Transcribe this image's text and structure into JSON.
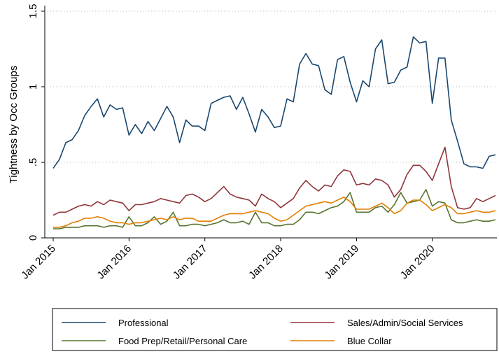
{
  "chart_data": {
    "type": "line",
    "y_label": "Tightness by Occ Groups",
    "x": [
      "2015-01",
      "2015-02",
      "2015-03",
      "2015-04",
      "2015-05",
      "2015-06",
      "2015-07",
      "2015-08",
      "2015-09",
      "2015-10",
      "2015-11",
      "2015-12",
      "2016-01",
      "2016-02",
      "2016-03",
      "2016-04",
      "2016-05",
      "2016-06",
      "2016-07",
      "2016-08",
      "2016-09",
      "2016-10",
      "2016-11",
      "2016-12",
      "2017-01",
      "2017-02",
      "2017-03",
      "2017-04",
      "2017-05",
      "2017-06",
      "2017-07",
      "2017-08",
      "2017-09",
      "2017-10",
      "2017-11",
      "2017-12",
      "2018-01",
      "2018-02",
      "2018-03",
      "2018-04",
      "2018-05",
      "2018-06",
      "2018-07",
      "2018-08",
      "2018-09",
      "2018-10",
      "2018-11",
      "2018-12",
      "2019-01",
      "2019-02",
      "2019-03",
      "2019-04",
      "2019-05",
      "2019-06",
      "2019-07",
      "2019-08",
      "2019-09",
      "2019-10",
      "2019-11",
      "2019-12",
      "2020-01",
      "2020-02",
      "2020-03",
      "2020-04",
      "2020-05",
      "2020-06",
      "2020-07",
      "2020-08",
      "2020-09",
      "2020-10",
      "2020-11"
    ],
    "xlim": [
      "2015-01",
      "2020-11"
    ],
    "xticks": [
      {
        "value": "2015-01",
        "label": "Jan 2015"
      },
      {
        "value": "2016-01",
        "label": "Jan 2016"
      },
      {
        "value": "2017-01",
        "label": "Jan 2017"
      },
      {
        "value": "2018-01",
        "label": "Jan 2018"
      },
      {
        "value": "2019-01",
        "label": "Jan 2019"
      },
      {
        "value": "2020-01",
        "label": "Jan 2020"
      }
    ],
    "ylim": [
      0,
      1.5
    ],
    "yticks": [
      0,
      {
        "value": 0.5,
        "label": ".5"
      },
      1,
      1.5
    ],
    "grid": true,
    "legend_position": "bottom",
    "series": [
      {
        "name": "Professional",
        "color": "#1a476f",
        "values": [
          0.46,
          0.52,
          0.63,
          0.65,
          0.71,
          0.81,
          0.87,
          0.92,
          0.8,
          0.88,
          0.85,
          0.86,
          0.68,
          0.75,
          0.69,
          0.77,
          0.71,
          0.79,
          0.87,
          0.8,
          0.63,
          0.78,
          0.74,
          0.74,
          0.71,
          0.89,
          0.91,
          0.93,
          0.94,
          0.85,
          0.93,
          0.82,
          0.7,
          0.85,
          0.8,
          0.73,
          0.74,
          0.92,
          0.9,
          1.15,
          1.22,
          1.15,
          1.14,
          0.98,
          0.95,
          1.18,
          1.2,
          1.03,
          0.9,
          1.04,
          1.0,
          1.25,
          1.31,
          1.02,
          1.03,
          1.11,
          1.13,
          1.33,
          1.29,
          1.3,
          0.89,
          1.19,
          1.19,
          0.78,
          0.64,
          0.49,
          0.47,
          0.47,
          0.46,
          0.54,
          0.55
        ]
      },
      {
        "name": "Sales/Admin/Social Services",
        "color": "#90353b",
        "values": [
          0.15,
          0.17,
          0.17,
          0.19,
          0.21,
          0.22,
          0.21,
          0.24,
          0.22,
          0.25,
          0.24,
          0.23,
          0.18,
          0.22,
          0.22,
          0.23,
          0.24,
          0.26,
          0.25,
          0.24,
          0.23,
          0.28,
          0.29,
          0.27,
          0.24,
          0.26,
          0.3,
          0.34,
          0.29,
          0.27,
          0.26,
          0.25,
          0.21,
          0.29,
          0.26,
          0.24,
          0.2,
          0.23,
          0.26,
          0.33,
          0.38,
          0.34,
          0.31,
          0.35,
          0.34,
          0.41,
          0.45,
          0.44,
          0.35,
          0.36,
          0.35,
          0.39,
          0.38,
          0.35,
          0.27,
          0.32,
          0.42,
          0.48,
          0.48,
          0.44,
          0.38,
          0.49,
          0.6,
          0.34,
          0.2,
          0.19,
          0.2,
          0.26,
          0.24,
          0.26,
          0.28
        ]
      },
      {
        "name": "Food Prep/Retail/Personal Care",
        "color": "#55752f",
        "values": [
          0.06,
          0.06,
          0.07,
          0.07,
          0.07,
          0.08,
          0.08,
          0.08,
          0.07,
          0.08,
          0.08,
          0.07,
          0.14,
          0.08,
          0.08,
          0.1,
          0.14,
          0.09,
          0.11,
          0.17,
          0.08,
          0.08,
          0.09,
          0.09,
          0.08,
          0.09,
          0.1,
          0.12,
          0.1,
          0.1,
          0.11,
          0.09,
          0.17,
          0.1,
          0.1,
          0.08,
          0.08,
          0.09,
          0.09,
          0.12,
          0.17,
          0.17,
          0.16,
          0.18,
          0.2,
          0.21,
          0.24,
          0.3,
          0.17,
          0.17,
          0.17,
          0.2,
          0.21,
          0.17,
          0.22,
          0.3,
          0.23,
          0.24,
          0.25,
          0.32,
          0.21,
          0.24,
          0.23,
          0.12,
          0.1,
          0.1,
          0.11,
          0.12,
          0.11,
          0.11,
          0.12
        ]
      },
      {
        "name": "Blue Collar",
        "color": "#e37e00",
        "values": [
          0.07,
          0.07,
          0.08,
          0.1,
          0.11,
          0.13,
          0.13,
          0.14,
          0.13,
          0.11,
          0.1,
          0.1,
          0.09,
          0.1,
          0.1,
          0.11,
          0.12,
          0.13,
          0.12,
          0.14,
          0.12,
          0.13,
          0.13,
          0.11,
          0.11,
          0.11,
          0.13,
          0.15,
          0.16,
          0.16,
          0.16,
          0.17,
          0.18,
          0.17,
          0.16,
          0.13,
          0.11,
          0.12,
          0.15,
          0.18,
          0.21,
          0.22,
          0.23,
          0.24,
          0.23,
          0.25,
          0.27,
          0.24,
          0.19,
          0.19,
          0.19,
          0.21,
          0.23,
          0.2,
          0.16,
          0.18,
          0.23,
          0.25,
          0.25,
          0.22,
          0.18,
          0.2,
          0.22,
          0.2,
          0.16,
          0.16,
          0.17,
          0.18,
          0.17,
          0.17,
          0.18
        ]
      }
    ]
  }
}
